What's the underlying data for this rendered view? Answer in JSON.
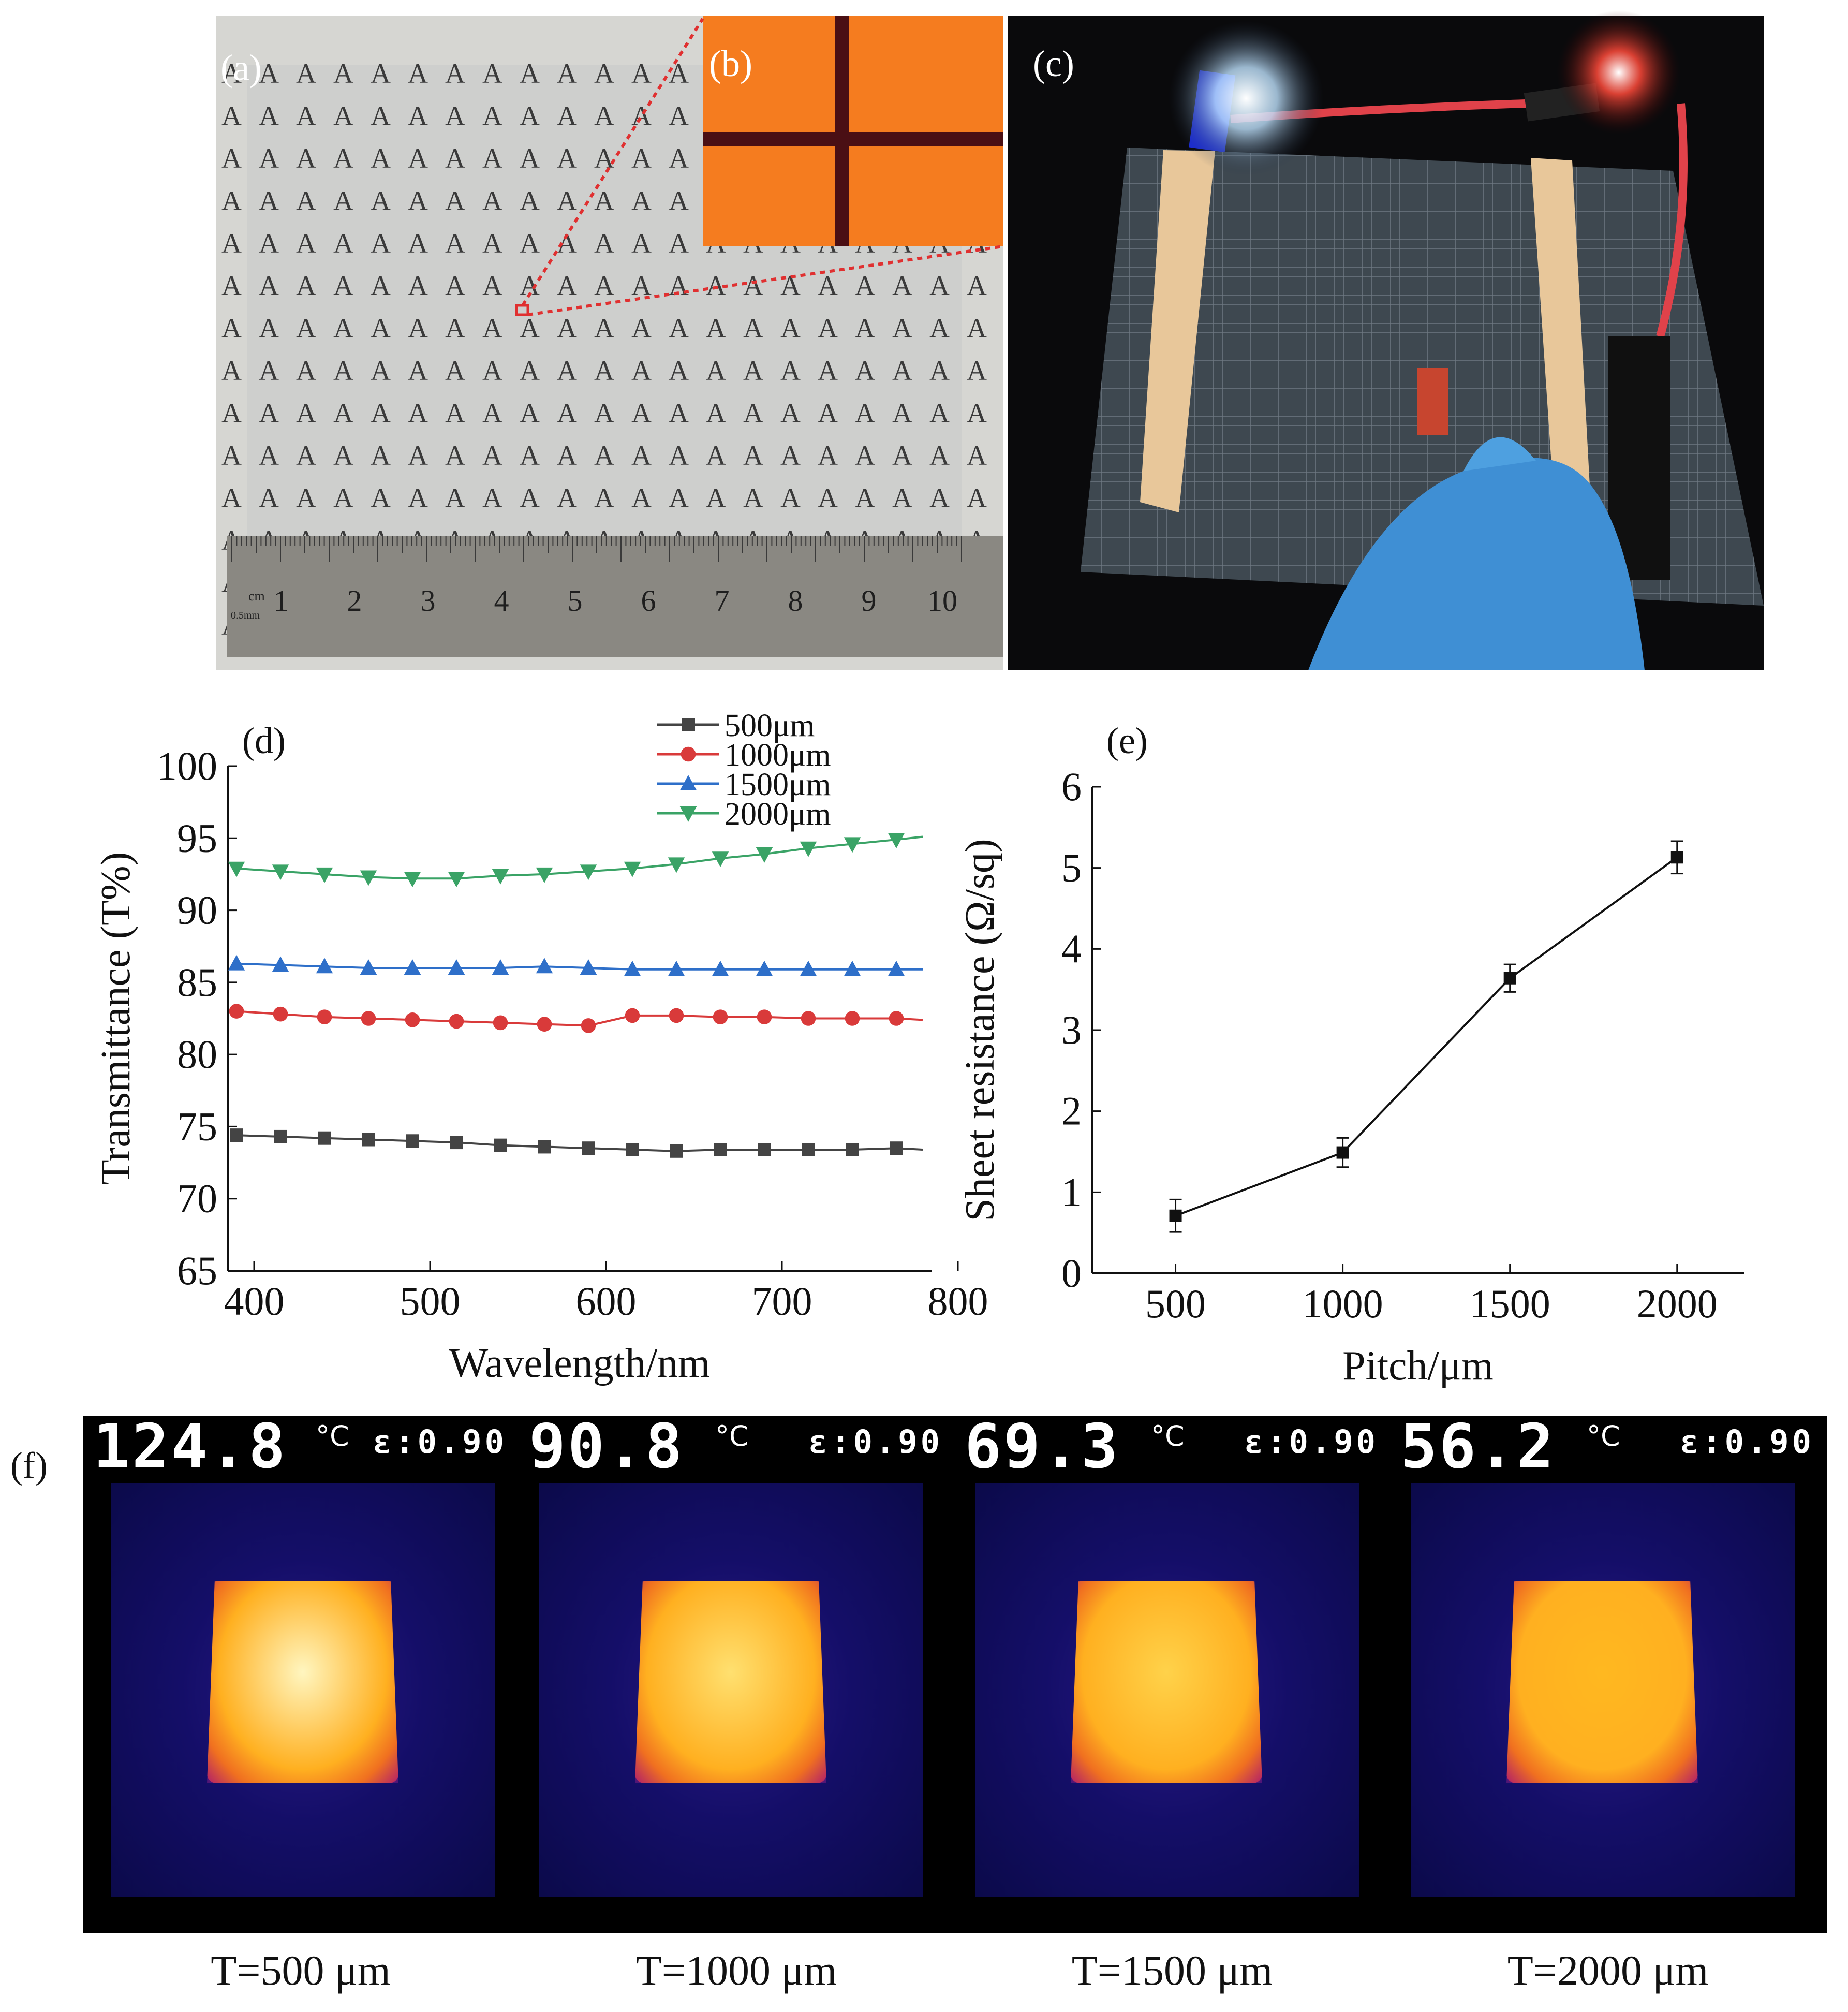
{
  "panels": {
    "a": {
      "label": "(a)",
      "glyph": "A"
    },
    "b": {
      "label": "(b)"
    },
    "c": {
      "label": "(c)"
    },
    "d": {
      "label": "(d)"
    },
    "e": {
      "label": "(e)"
    },
    "f": {
      "label": "(f)"
    }
  },
  "ruler": {
    "unit": "cm",
    "sub": "0.5mm",
    "ticks": [
      "1",
      "2",
      "3",
      "4",
      "5",
      "6",
      "7",
      "8",
      "9",
      "10"
    ]
  },
  "chart_data": [
    {
      "id": "d",
      "type": "line",
      "xlabel": "Wavelength/nm",
      "ylabel": "Transmittance (T%)",
      "xlim": [
        385,
        785
      ],
      "ylim": [
        65,
        100
      ],
      "xticks": [
        400,
        500,
        600,
        700,
        800
      ],
      "yticks": [
        65,
        70,
        75,
        80,
        85,
        90,
        95,
        100
      ],
      "legend_position": "top-right",
      "series": [
        {
          "name": "500μm",
          "color": "#444444",
          "marker": "square",
          "x": [
            390,
            415,
            440,
            465,
            490,
            515,
            540,
            565,
            590,
            615,
            640,
            665,
            690,
            715,
            740,
            765,
            780
          ],
          "y": [
            74.4,
            74.3,
            74.2,
            74.1,
            74.0,
            73.9,
            73.7,
            73.6,
            73.5,
            73.4,
            73.3,
            73.4,
            73.4,
            73.4,
            73.4,
            73.5,
            73.4
          ]
        },
        {
          "name": "1000μm",
          "color": "#d93a3a",
          "marker": "circle",
          "x": [
            390,
            415,
            440,
            465,
            490,
            515,
            540,
            565,
            590,
            615,
            640,
            665,
            690,
            715,
            740,
            765,
            780
          ],
          "y": [
            83.0,
            82.8,
            82.6,
            82.5,
            82.4,
            82.3,
            82.2,
            82.1,
            82.0,
            82.7,
            82.7,
            82.6,
            82.6,
            82.5,
            82.5,
            82.5,
            82.4
          ]
        },
        {
          "name": "1500μm",
          "color": "#2e6fc9",
          "marker": "triangle-up",
          "x": [
            390,
            415,
            440,
            465,
            490,
            515,
            540,
            565,
            590,
            615,
            640,
            665,
            690,
            715,
            740,
            765,
            780
          ],
          "y": [
            86.3,
            86.2,
            86.1,
            86.0,
            86.0,
            86.0,
            86.0,
            86.1,
            86.0,
            85.9,
            85.9,
            85.9,
            85.9,
            85.9,
            85.9,
            85.9,
            85.9
          ]
        },
        {
          "name": "2000μm",
          "color": "#3aa366",
          "marker": "triangle-down",
          "x": [
            390,
            415,
            440,
            465,
            490,
            515,
            540,
            565,
            590,
            615,
            640,
            665,
            690,
            715,
            740,
            765,
            780
          ],
          "y": [
            92.9,
            92.7,
            92.5,
            92.3,
            92.2,
            92.2,
            92.4,
            92.5,
            92.7,
            92.9,
            93.2,
            93.6,
            93.9,
            94.3,
            94.6,
            94.9,
            95.1
          ]
        }
      ]
    },
    {
      "id": "e",
      "type": "line",
      "xlabel": "Pitch/μm",
      "ylabel": "Sheet resistance (Ω/sq)",
      "xlim": [
        250,
        2200
      ],
      "ylim": [
        0,
        6
      ],
      "xticks": [
        500,
        1000,
        1500,
        2000
      ],
      "yticks": [
        0,
        1,
        2,
        3,
        4,
        5,
        6
      ],
      "series": [
        {
          "color": "#111111",
          "marker": "square",
          "x": [
            500,
            1000,
            1500,
            2000
          ],
          "y": [
            0.71,
            1.49,
            3.64,
            5.13
          ],
          "error": [
            0.2,
            0.18,
            0.17,
            0.2
          ]
        }
      ]
    }
  ],
  "thermal": [
    {
      "temp": "124.8",
      "unit": "°C",
      "eps": "ε:0.90",
      "caption": "T=500 μm",
      "hotspot": "#fff6c0"
    },
    {
      "temp": "90.8",
      "unit": "°C",
      "eps": "ε:0.90",
      "caption": "T=1000 μm",
      "hotspot": "#ffe070"
    },
    {
      "temp": "69.3",
      "unit": "°C",
      "eps": "ε:0.90",
      "caption": "T=1500 μm",
      "hotspot": "#ffd24a"
    },
    {
      "temp": "56.2",
      "unit": "°C",
      "eps": "ε:0.90",
      "caption": "T=2000 μm",
      "hotspot": "#ffb820"
    }
  ]
}
